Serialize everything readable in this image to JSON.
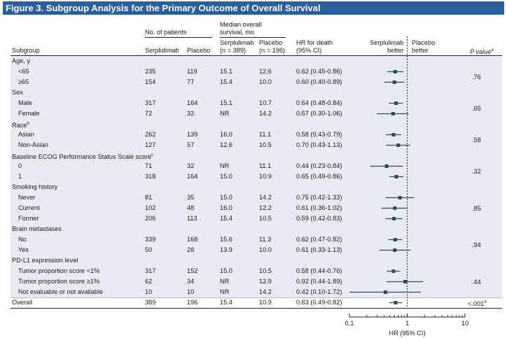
{
  "figure_title": "Figure 3. Subgroup Analysis for the Primary Outcome of Overall Survival",
  "headers": {
    "subgroup": "Subgroup",
    "no_patients": "No. of patients",
    "median_os_line1": "Median overall",
    "median_os_line2": "survival, mo",
    "serplulimab": "Serplulimab",
    "placebo": "Placebo",
    "serplulimab_n": "(n = 389)",
    "placebo_n": "(n = 196)",
    "hr_line1": "HR for death",
    "hr_line2": "(95% CI)",
    "favors_serplulimab_line1": "Serplulimab",
    "favors_serplulimab_line2": "better",
    "favors_placebo_line1": "Placebo",
    "favors_placebo_line2": "better",
    "p_value": "P value",
    "p_value_sup": "a"
  },
  "chart_data": {
    "type": "forest",
    "x_scale": "log",
    "xlim": [
      0.1,
      10
    ],
    "x_ticks": [
      "0.1",
      "1",
      "10"
    ],
    "xlabel": "HR (95% CI)",
    "reference_line": 1,
    "groups": [
      {
        "label": "Age, y",
        "sup": "",
        "p_value": ".76",
        "rows": [
          {
            "label": "<65",
            "n_serp": "235",
            "n_plac": "119",
            "os_serp": "15.1",
            "os_plac": "12.6",
            "hr_text": "0.62 (0.45-0.86)",
            "hr": 0.62,
            "lo": 0.45,
            "hi": 0.86
          },
          {
            "label": "≥65",
            "n_serp": "154",
            "n_plac": "77",
            "os_serp": "15.4",
            "os_plac": "10.0",
            "hr_text": "0.60 (0.40-0.89)",
            "hr": 0.6,
            "lo": 0.4,
            "hi": 0.89
          }
        ]
      },
      {
        "label": "Sex",
        "sup": "",
        "p_value": ".65",
        "rows": [
          {
            "label": "Male",
            "n_serp": "317",
            "n_plac": "164",
            "os_serp": "15.1",
            "os_plac": "10.7",
            "hr_text": "0.64 (0.48-0.84)",
            "hr": 0.64,
            "lo": 0.48,
            "hi": 0.84
          },
          {
            "label": "Female",
            "n_serp": "72",
            "n_plac": "32",
            "os_serp": "NR",
            "os_plac": "14.2",
            "hr_text": "0.57 (0.30-1.06)",
            "hr": 0.57,
            "lo": 0.3,
            "hi": 1.06
          }
        ]
      },
      {
        "label": "Race",
        "sup": "b",
        "p_value": ".58",
        "rows": [
          {
            "label": "Asian",
            "n_serp": "262",
            "n_plac": "139",
            "os_serp": "16.0",
            "os_plac": "11.1",
            "hr_text": "0.58 (0.43-0.79)",
            "hr": 0.58,
            "lo": 0.43,
            "hi": 0.79
          },
          {
            "label": "Non-Asian",
            "n_serp": "127",
            "n_plac": "57",
            "os_serp": "12.6",
            "os_plac": "10.5",
            "hr_text": "0.70 (0.43-1.13)",
            "hr": 0.7,
            "lo": 0.43,
            "hi": 1.13
          }
        ]
      },
      {
        "label": "Baseline ECOG Performance Status Scale score",
        "sup": "c",
        "p_value": ".32",
        "rows": [
          {
            "label": "0",
            "n_serp": "71",
            "n_plac": "32",
            "os_serp": "NR",
            "os_plac": "11.1",
            "hr_text": "0.44 (0.23-0.84)",
            "hr": 0.44,
            "lo": 0.23,
            "hi": 0.84
          },
          {
            "label": "1",
            "n_serp": "318",
            "n_plac": "164",
            "os_serp": "15.0",
            "os_plac": "10.9",
            "hr_text": "0.65 (0.49-0.86)",
            "hr": 0.65,
            "lo": 0.49,
            "hi": 0.86
          }
        ]
      },
      {
        "label": "Smoking history",
        "sup": "",
        "p_value": ".85",
        "rows": [
          {
            "label": "Never",
            "n_serp": "81",
            "n_plac": "35",
            "os_serp": "15.0",
            "os_plac": "14.2",
            "hr_text": "0.75 (0.42-1.33)",
            "hr": 0.75,
            "lo": 0.42,
            "hi": 1.33
          },
          {
            "label": "Current",
            "n_serp": "102",
            "n_plac": "48",
            "os_serp": "16.0",
            "os_plac": "12.2",
            "hr_text": "0.61 (0.36-1.02)",
            "hr": 0.61,
            "lo": 0.36,
            "hi": 1.02
          },
          {
            "label": "Former",
            "n_serp": "206",
            "n_plac": "113",
            "os_serp": "15.4",
            "os_plac": "10.5",
            "hr_text": "0.59 (0.42-0.83)",
            "hr": 0.59,
            "lo": 0.42,
            "hi": 0.83
          }
        ]
      },
      {
        "label": "Brain metastases",
        "sup": "",
        "p_value": ".94",
        "rows": [
          {
            "label": "No",
            "n_serp": "339",
            "n_plac": "168",
            "os_serp": "15.6",
            "os_plac": "11.3",
            "hr_text": "0.62 (0.47-0.82)",
            "hr": 0.62,
            "lo": 0.47,
            "hi": 0.82
          },
          {
            "label": "Yes",
            "n_serp": "50",
            "n_plac": "28",
            "os_serp": "13.9",
            "os_plac": "10.0",
            "hr_text": "0.61 (0.33-1.13)",
            "hr": 0.61,
            "lo": 0.33,
            "hi": 1.13
          }
        ]
      },
      {
        "label": "PD-L1 expression level",
        "sup": "",
        "p_value": ".44",
        "rows": [
          {
            "label": "Tumor proportion score <1%",
            "n_serp": "317",
            "n_plac": "152",
            "os_serp": "15.0",
            "os_plac": "10.5",
            "hr_text": "0.58 (0.44-0.76)",
            "hr": 0.58,
            "lo": 0.44,
            "hi": 0.76
          },
          {
            "label": "Tumor proportion score ≥1%",
            "n_serp": "62",
            "n_plac": "34",
            "os_serp": "NR",
            "os_plac": "12.9",
            "hr_text": "0.92 (0.44-1.89)",
            "hr": 0.92,
            "lo": 0.44,
            "hi": 1.89
          },
          {
            "label": "Not evaluable or not available",
            "n_serp": "10",
            "n_plac": "10",
            "os_serp": "NR",
            "os_plac": "14.2",
            "hr_text": "0.42 (0.10-1.72)",
            "hr": 0.42,
            "lo": 0.1,
            "hi": 1.72
          }
        ]
      }
    ],
    "overall": {
      "label": "Overall",
      "n_serp": "389",
      "n_plac": "196",
      "os_serp": "15.4",
      "os_plac": "10.9",
      "hr_text": "0.63 (0.49-0.82)",
      "hr": 0.63,
      "lo": 0.49,
      "hi": 0.82,
      "p_value": "<.001",
      "p_sup": "d"
    }
  },
  "colors": {
    "title_bar": "#2b5f9e",
    "marker": "#2f4a63",
    "shade": "#e8ecf2"
  }
}
